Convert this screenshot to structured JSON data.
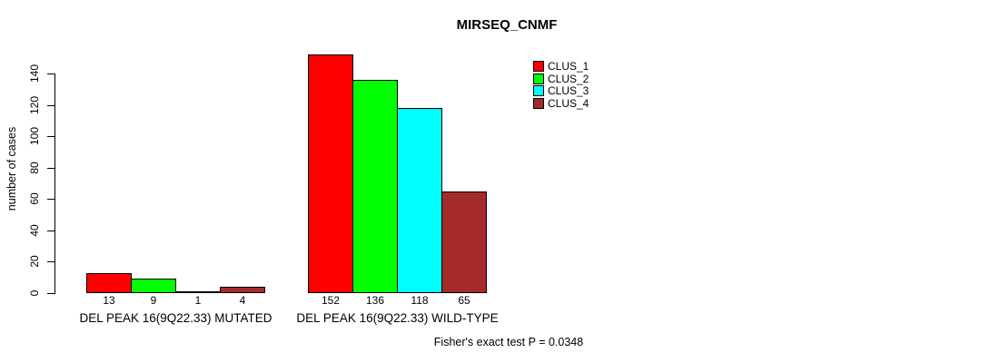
{
  "chart_data": {
    "type": "bar",
    "title": "MIRSEQ_CNMF",
    "ylabel": "number of cases",
    "xlabel": "",
    "ylim": [
      0,
      140
    ],
    "yticks": [
      0,
      20,
      40,
      60,
      80,
      100,
      120,
      140
    ],
    "grid": false,
    "legend_position": "top-right",
    "categories": [
      "DEL PEAK 16(9Q22.33) MUTATED",
      "DEL PEAK 16(9Q22.33) WILD-TYPE"
    ],
    "series": [
      {
        "name": "CLUS_1",
        "color": "#FF0000",
        "values": [
          13,
          152
        ]
      },
      {
        "name": "CLUS_2",
        "color": "#00FF00",
        "values": [
          9,
          136
        ]
      },
      {
        "name": "CLUS_3",
        "color": "#00FFFF",
        "values": [
          1,
          118
        ]
      },
      {
        "name": "CLUS_4",
        "color": "#A52A2A",
        "values": [
          4,
          65
        ]
      }
    ],
    "bar_value_labels": [
      [
        13,
        9,
        1,
        4
      ],
      [
        152,
        136,
        118,
        65
      ]
    ],
    "annotation": "Fisher's exact test P = 0.0348",
    "bar_border_color": "#000000",
    "text_color": "#000000",
    "background_color": "#FFFFFF"
  }
}
